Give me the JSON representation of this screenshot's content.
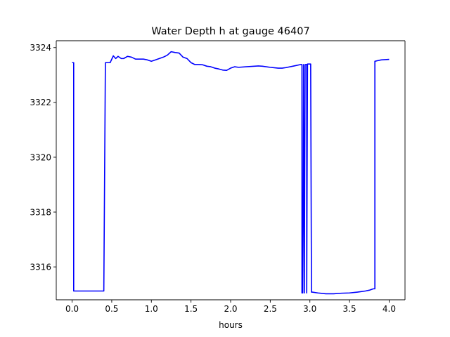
{
  "chart_data": {
    "type": "line",
    "title": "Water Depth h at gauge 46407",
    "xlabel": "hours",
    "ylabel": "",
    "xlim": [
      -0.2,
      4.2
    ],
    "ylim": [
      3314.8,
      3324.25
    ],
    "grid": false,
    "legend": "none",
    "x_ticks": [
      0.0,
      0.5,
      1.0,
      1.5,
      2.0,
      2.5,
      3.0,
      3.5,
      4.0
    ],
    "x_tick_labels": [
      "0.0",
      "0.5",
      "1.0",
      "1.5",
      "2.0",
      "2.5",
      "3.0",
      "3.5",
      "4.0"
    ],
    "y_ticks": [
      3316,
      3318,
      3320,
      3322,
      3324
    ],
    "y_tick_labels": [
      "3316",
      "3318",
      "3320",
      "3322",
      "3324"
    ],
    "series": [
      {
        "color": "#0000ff",
        "x": [
          0.0,
          0.02,
          0.02,
          0.38,
          0.4,
          0.42,
          0.48,
          0.52,
          0.55,
          0.58,
          0.62,
          0.65,
          0.7,
          0.75,
          0.8,
          0.85,
          0.9,
          0.95,
          1.0,
          1.05,
          1.1,
          1.15,
          1.2,
          1.25,
          1.3,
          1.35,
          1.4,
          1.45,
          1.5,
          1.55,
          1.6,
          1.65,
          1.7,
          1.75,
          1.8,
          1.85,
          1.9,
          1.95,
          2.0,
          2.05,
          2.1,
          2.2,
          2.3,
          2.35,
          2.4,
          2.5,
          2.6,
          2.65,
          2.7,
          2.8,
          2.88,
          2.9,
          2.9,
          2.91,
          2.92,
          2.93,
          2.94,
          2.96,
          2.96,
          2.97,
          2.98,
          3.01,
          3.02,
          3.03,
          3.1,
          3.2,
          3.3,
          3.4,
          3.5,
          3.6,
          3.7,
          3.75,
          3.8,
          3.82,
          3.82,
          3.85,
          3.9,
          3.95,
          4.0
        ],
        "y": [
          3323.45,
          3323.45,
          3315.12,
          3315.12,
          3315.12,
          3323.45,
          3323.45,
          3323.7,
          3323.6,
          3323.68,
          3323.6,
          3323.6,
          3323.68,
          3323.65,
          3323.58,
          3323.58,
          3323.58,
          3323.55,
          3323.5,
          3323.55,
          3323.6,
          3323.65,
          3323.72,
          3323.85,
          3323.82,
          3323.8,
          3323.65,
          3323.6,
          3323.45,
          3323.38,
          3323.38,
          3323.37,
          3323.32,
          3323.3,
          3323.25,
          3323.22,
          3323.18,
          3323.17,
          3323.25,
          3323.3,
          3323.28,
          3323.3,
          3323.32,
          3323.33,
          3323.32,
          3323.28,
          3323.25,
          3323.25,
          3323.27,
          3323.33,
          3323.38,
          3323.38,
          3315.05,
          3315.05,
          3323.38,
          3315.05,
          3323.38,
          3323.38,
          3315.05,
          3323.4,
          3323.4,
          3323.4,
          3315.08,
          3315.08,
          3315.05,
          3315.02,
          3315.02,
          3315.04,
          3315.05,
          3315.08,
          3315.12,
          3315.15,
          3315.2,
          3315.2,
          3323.5,
          3323.52,
          3323.55,
          3323.56,
          3323.57
        ]
      }
    ]
  }
}
